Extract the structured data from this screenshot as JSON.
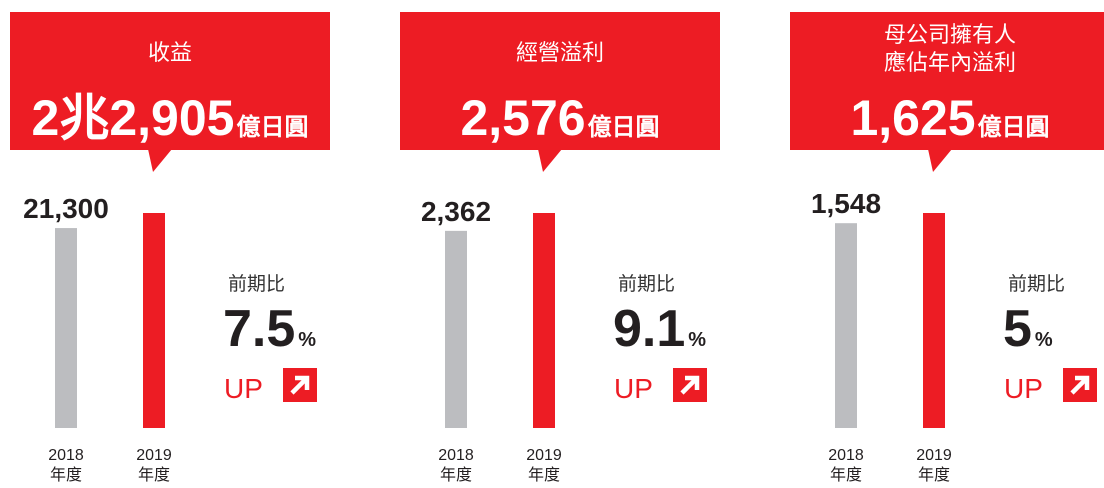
{
  "chart_data": [
    {
      "type": "bar",
      "title": [
        "收益"
      ],
      "categories": [
        [
          "2018",
          "年度"
        ],
        [
          "2019",
          "年度"
        ]
      ],
      "values": [
        21300,
        22905
      ],
      "value_labels": [
        "21,300",
        "2兆2,905"
      ],
      "unit": "億日圓",
      "colors": [
        "#bcbdc0",
        "#ed1c24"
      ],
      "change_label": "前期比",
      "change": 7.5,
      "change_unit": "%",
      "change_direction": "UP"
    },
    {
      "type": "bar",
      "title": [
        "經營溢利"
      ],
      "categories": [
        [
          "2018",
          "年度"
        ],
        [
          "2019",
          "年度"
        ]
      ],
      "values": [
        2362,
        2576
      ],
      "value_labels": [
        "2,362",
        "2,576"
      ],
      "unit": "億日圓",
      "colors": [
        "#bcbdc0",
        "#ed1c24"
      ],
      "change_label": "前期比",
      "change": 9.1,
      "change_unit": "%",
      "change_direction": "UP"
    },
    {
      "type": "bar",
      "title": [
        "母公司擁有人",
        "應佔年內溢利"
      ],
      "categories": [
        [
          "2018",
          "年度"
        ],
        [
          "2019",
          "年度"
        ]
      ],
      "values": [
        1548,
        1625
      ],
      "value_labels": [
        "1,548",
        "1,625"
      ],
      "unit": "億日圓",
      "colors": [
        "#bcbdc0",
        "#ed1c24"
      ],
      "change_label": "前期比",
      "change": 5.0,
      "change_unit": "%",
      "change_direction": "UP"
    }
  ]
}
